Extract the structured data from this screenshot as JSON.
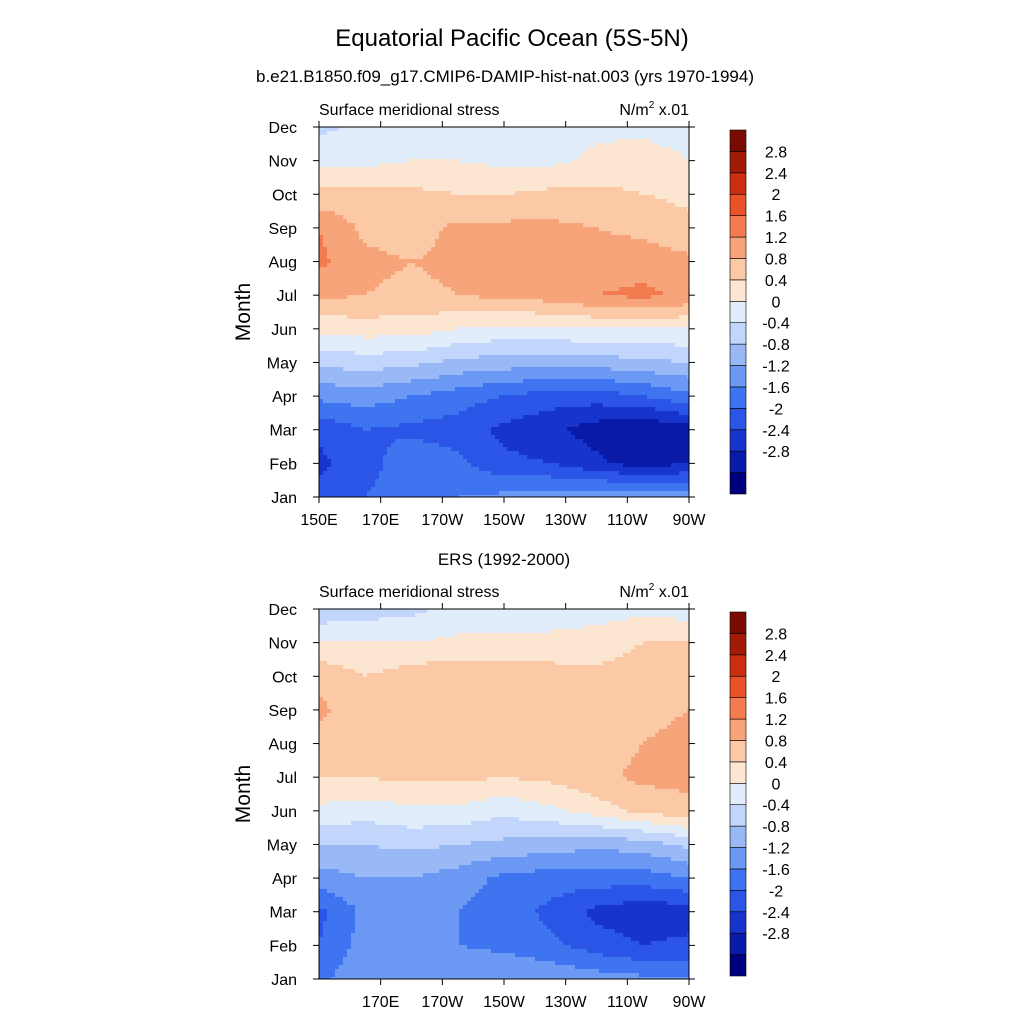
{
  "title": "Equatorial Pacific Ocean (5S-5N)",
  "subtitle": "b.e21.B1850.f09_g17.CMIP6-DAMIP-hist-nat.003 (yrs 1970-1994)",
  "colors": {
    "levels": [
      "#00007f",
      "#0a1aa8",
      "#1735cc",
      "#2a55e6",
      "#3f74f0",
      "#6b98f3",
      "#98b9f6",
      "#c1d6fa",
      "#e2edfc",
      "#fde6d1",
      "#fbc9a5",
      "#f8a47a",
      "#f27c4f",
      "#e95228",
      "#cc2f10",
      "#a11b07",
      "#7a0b02"
    ]
  },
  "chart_data": [
    {
      "type": "heatmap",
      "name": "model",
      "title": "",
      "label_left": "Surface meridional stress",
      "label_right_base": "N/m",
      "label_right_exp": "2",
      "label_right_scale": " x.01",
      "ylabel": "Month",
      "xlabel": "",
      "x_ticks": [
        "150E",
        "170E",
        "170W",
        "150W",
        "130W",
        "110W",
        "90W"
      ],
      "x_values_deg_east": [
        150,
        170,
        190,
        210,
        230,
        250,
        270
      ],
      "xlim": [
        150,
        270
      ],
      "y_ticks": [
        "Jan",
        "Feb",
        "Mar",
        "Apr",
        "May",
        "Jun",
        "Jul",
        "Aug",
        "Sep",
        "Oct",
        "Nov",
        "Dec"
      ],
      "levels": [
        -2.8,
        -2.4,
        -2,
        -1.6,
        -1.2,
        -0.8,
        -0.4,
        0,
        0.4,
        0.8,
        1.2,
        1.6,
        2,
        2.4,
        2.8
      ],
      "colorbar_labels": [
        "2.8",
        "2.4",
        "2",
        "1.6",
        "1.2",
        "0.8",
        "0.4",
        "0",
        "-0.4",
        "-0.8",
        "-1.2",
        "-1.6",
        "-2",
        "-2.4",
        "-2.8"
      ],
      "x": [
        150,
        165,
        180,
        195,
        210,
        225,
        240,
        255,
        270
      ],
      "months": [
        "Jan",
        "Feb",
        "Mar",
        "Apr",
        "May",
        "Jun",
        "Jul",
        "Aug",
        "Sep",
        "Oct",
        "Nov",
        "Dec"
      ],
      "values": [
        [
          -1.8,
          -1.6,
          -1.3,
          -1.2,
          -1.1,
          -1.0,
          -0.9,
          -0.9,
          -0.9
        ],
        [
          -2.1,
          -1.8,
          -1.3,
          -1.5,
          -1.9,
          -2.0,
          -2.3,
          -2.6,
          -2.4
        ],
        [
          -1.9,
          -1.6,
          -1.7,
          -1.8,
          -2.1,
          -2.3,
          -2.6,
          -2.8,
          -2.6
        ],
        [
          -1.1,
          -1.0,
          -1.2,
          -1.4,
          -1.6,
          -1.8,
          -1.8,
          -1.6,
          -1.3
        ],
        [
          -0.3,
          -0.2,
          -0.3,
          -0.5,
          -0.6,
          -0.6,
          -0.6,
          -0.5,
          -0.4
        ],
        [
          0.5,
          0.6,
          0.6,
          0.4,
          0.3,
          0.3,
          0.4,
          0.4,
          0.4
        ],
        [
          1.3,
          1.2,
          1.1,
          1.2,
          1.3,
          1.4,
          1.6,
          1.7,
          1.5
        ],
        [
          1.7,
          1.3,
          1.2,
          1.3,
          1.4,
          1.4,
          1.4,
          1.4,
          1.3
        ],
        [
          1.6,
          1.1,
          1.0,
          1.3,
          1.3,
          1.3,
          1.2,
          1.1,
          0.9
        ],
        [
          0.9,
          0.9,
          0.9,
          0.8,
          0.8,
          0.9,
          0.9,
          0.8,
          0.7
        ],
        [
          0.3,
          0.3,
          0.4,
          0.4,
          0.3,
          0.3,
          0.5,
          0.6,
          0.4
        ],
        [
          -0.1,
          0.1,
          0.2,
          0.2,
          0.2,
          0.2,
          0.3,
          0.3,
          0.2
        ]
      ]
    },
    {
      "type": "heatmap",
      "name": "obs",
      "title": "ERS (1992-2000)",
      "label_left": "Surface meridional stress",
      "label_right_base": "N/m",
      "label_right_exp": "2",
      "label_right_scale": " x.01",
      "ylabel": "Month",
      "xlabel": "",
      "x_ticks": [
        "170E",
        "170W",
        "150W",
        "130W",
        "110W",
        "90W"
      ],
      "x_values_deg_east": [
        170,
        190,
        210,
        230,
        250,
        270
      ],
      "xlim": [
        150,
        270
      ],
      "y_ticks": [
        "Jan",
        "Feb",
        "Mar",
        "Apr",
        "May",
        "Jun",
        "Jul",
        "Aug",
        "Sep",
        "Oct",
        "Nov",
        "Dec"
      ],
      "levels": [
        -2.8,
        -2.4,
        -2,
        -1.6,
        -1.2,
        -0.8,
        -0.4,
        0,
        0.4,
        0.8,
        1.2,
        1.6,
        2,
        2.4,
        2.8
      ],
      "colorbar_labels": [
        "2.8",
        "2.4",
        "2",
        "1.6",
        "1.2",
        "0.8",
        "0.4",
        "0",
        "-0.4",
        "-0.8",
        "-1.2",
        "-1.6",
        "-2",
        "-2.4",
        "-2.8"
      ],
      "x": [
        150,
        165,
        180,
        195,
        210,
        225,
        240,
        255,
        270
      ],
      "months": [
        "Jan",
        "Feb",
        "Mar",
        "Apr",
        "May",
        "Jun",
        "Jul",
        "Aug",
        "Sep",
        "Oct",
        "Nov",
        "Dec"
      ],
      "values": [
        [
          -1.3,
          -0.9,
          -0.8,
          -0.9,
          -0.8,
          -0.9,
          -1.0,
          -1.1,
          -1.2
        ],
        [
          -1.6,
          -1.0,
          -0.9,
          -1.2,
          -1.3,
          -1.5,
          -1.8,
          -2.0,
          -1.9
        ],
        [
          -1.7,
          -1.1,
          -1.0,
          -1.2,
          -1.4,
          -1.7,
          -2.1,
          -2.3,
          -2.2
        ],
        [
          -1.0,
          -0.8,
          -0.8,
          -1.0,
          -1.3,
          -1.4,
          -1.4,
          -1.4,
          -1.2
        ],
        [
          -0.4,
          -0.4,
          -0.3,
          -0.4,
          -0.5,
          -0.6,
          -0.7,
          -0.6,
          -0.3
        ],
        [
          0.3,
          0.2,
          0.3,
          0.3,
          0.1,
          0.3,
          0.6,
          0.9,
          1.1
        ],
        [
          0.8,
          0.8,
          0.9,
          0.9,
          0.8,
          0.9,
          1.1,
          1.3,
          1.3
        ],
        [
          1.0,
          0.9,
          1.0,
          0.9,
          1.0,
          1.0,
          1.0,
          1.2,
          1.3
        ],
        [
          1.3,
          0.9,
          1.0,
          1.1,
          1.1,
          1.0,
          1.0,
          1.1,
          1.2
        ],
        [
          1.1,
          0.8,
          1.0,
          1.1,
          1.1,
          1.0,
          0.9,
          1.0,
          1.2
        ],
        [
          0.4,
          0.4,
          0.4,
          0.5,
          0.5,
          0.5,
          0.6,
          0.8,
          0.8
        ],
        [
          -0.3,
          -0.2,
          -0.1,
          0.1,
          0.2,
          0.2,
          0.2,
          0.3,
          0.2
        ]
      ]
    }
  ]
}
